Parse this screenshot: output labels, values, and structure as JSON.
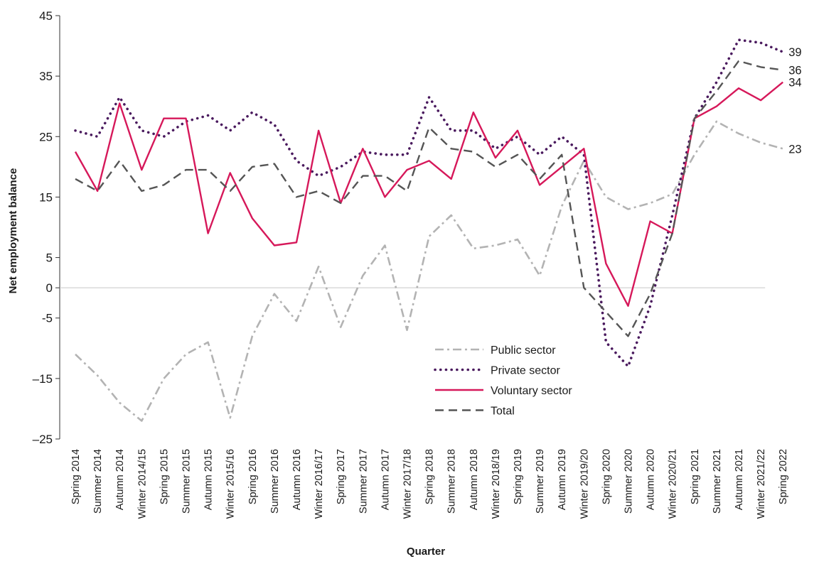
{
  "chart_data": {
    "type": "line",
    "title": "",
    "xlabel": "Quarter",
    "ylabel": "Net employment balance",
    "ylim": [
      -25,
      45
    ],
    "y_ticks": [
      -25,
      -15,
      -5,
      0,
      5,
      15,
      25,
      35,
      45
    ],
    "y_tick_labels": [
      "–25",
      "–15",
      "-5",
      "0",
      "5",
      "15",
      "25",
      "35",
      "45"
    ],
    "zero_line": true,
    "grid": false,
    "legend_position": "lower-middle",
    "categories": [
      "Spring 2014",
      "Summer 2014",
      "Autumn 2014",
      "Winter 2014/15",
      "Spring 2015",
      "Summer 2015",
      "Autumn 2015",
      "Winter 2015/16",
      "Spring 2016",
      "Summer 2016",
      "Autumn 2016",
      "Winter 2016/17",
      "Spring 2017",
      "Summer 2017",
      "Autumn 2017",
      "Winter 2017/18",
      "Spring 2018",
      "Summer 2018",
      "Autumn 2018",
      "Winter 2018/19",
      "Spring 2019",
      "Summer 2019",
      "Autumn 2019",
      "Winter 2019/20",
      "Spring 2020",
      "Summer 2020",
      "Autumn 2020",
      "Winter 2020/21",
      "Spring 2021",
      "Summer 2021",
      "Autumn 2021",
      "Winter 2021/22",
      "Spring 2022"
    ],
    "series": [
      {
        "name": "Public sector",
        "color": "#b3b3b3",
        "dash": "dashdot",
        "end_label": "23",
        "values": [
          -11,
          -14.5,
          -19,
          -22,
          -15,
          -11,
          -9,
          -21.5,
          -8,
          -1,
          -5.5,
          3.5,
          -6.5,
          2,
          7,
          -7,
          8.5,
          12,
          6.5,
          7,
          8,
          2,
          13.5,
          21,
          15,
          13,
          14,
          15.5,
          22,
          27.5,
          25.5,
          24,
          23
        ]
      },
      {
        "name": "Private sector",
        "color": "#4a1a5e",
        "dash": "dotted",
        "end_label": "39",
        "values": [
          26,
          25,
          31.5,
          26,
          25,
          27.5,
          28.5,
          26,
          29,
          27,
          21,
          18.5,
          20,
          22.5,
          22,
          22,
          31.5,
          26,
          26,
          23,
          25,
          22,
          25,
          22,
          -9,
          -13,
          -3,
          12,
          28,
          34,
          41,
          40.5,
          39
        ]
      },
      {
        "name": "Voluntary sector",
        "color": "#d6185a",
        "dash": "solid",
        "end_label": "34",
        "values": [
          22.5,
          16,
          30.5,
          19.5,
          28,
          28,
          9,
          19,
          11.5,
          7,
          7.5,
          26,
          14,
          23,
          15,
          19.5,
          21,
          18,
          29,
          21.5,
          26,
          17,
          20,
          23,
          4,
          -3,
          11,
          9,
          28,
          30,
          33,
          31,
          34
        ]
      },
      {
        "name": "Total",
        "color": "#555555",
        "dash": "dashed",
        "end_label": "36",
        "values": [
          18,
          16,
          21,
          16,
          17,
          19.5,
          19.5,
          16,
          20,
          20.5,
          15,
          16,
          14,
          18.5,
          18.5,
          16,
          26.5,
          23,
          22.5,
          20,
          22,
          18,
          22,
          0,
          -4,
          -8,
          -1,
          9,
          28,
          32.5,
          37.5,
          36.5,
          36
        ]
      }
    ]
  }
}
